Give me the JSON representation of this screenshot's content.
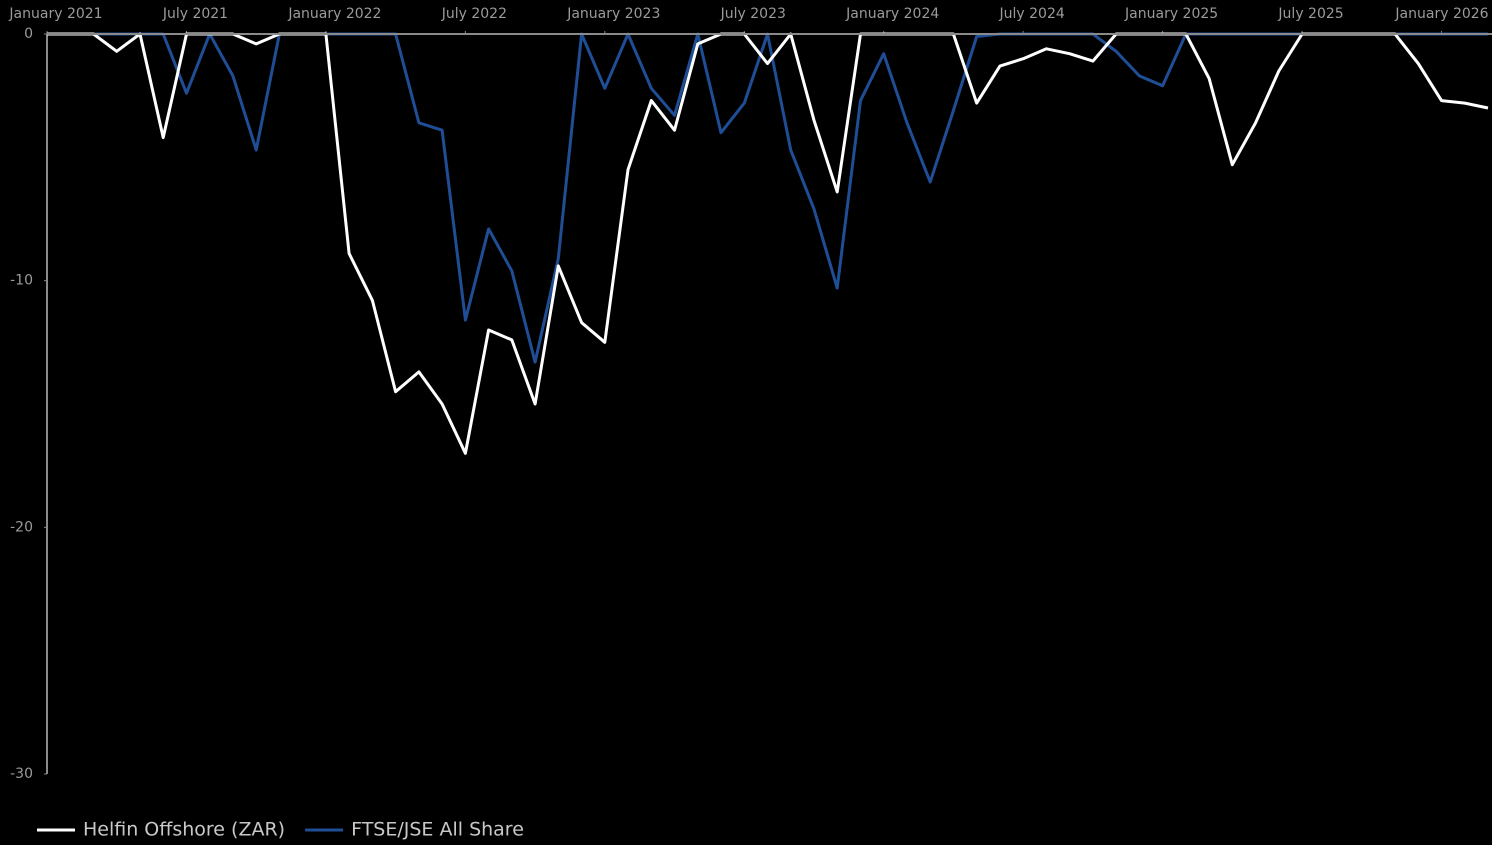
{
  "chart_data": {
    "type": "line",
    "x": [
      "2021-01",
      "2021-02",
      "2021-03",
      "2021-04",
      "2021-05",
      "2021-06",
      "2021-07",
      "2021-08",
      "2021-09",
      "2021-10",
      "2021-11",
      "2021-12",
      "2022-01",
      "2022-02",
      "2022-03",
      "2022-04",
      "2022-05",
      "2022-06",
      "2022-07",
      "2022-08",
      "2022-09",
      "2022-10",
      "2022-11",
      "2022-12",
      "2023-01",
      "2023-02",
      "2023-03",
      "2023-04",
      "2023-05",
      "2023-06",
      "2023-07",
      "2023-08",
      "2023-09",
      "2023-10",
      "2023-11",
      "2023-12",
      "2024-01",
      "2024-02",
      "2024-03",
      "2024-04",
      "2024-05",
      "2024-06",
      "2024-07",
      "2024-08",
      "2024-09",
      "2024-10",
      "2024-11",
      "2024-12",
      "2025-01",
      "2025-02",
      "2025-03",
      "2025-04",
      "2025-05",
      "2025-06",
      "2025-07",
      "2025-08",
      "2025-09",
      "2025-10",
      "2025-11",
      "2025-12",
      "2026-01",
      "2026-02",
      "2026-03"
    ],
    "xticks": [
      {
        "value": "2021-01",
        "label": "January 2021"
      },
      {
        "value": "2021-07",
        "label": "July 2021"
      },
      {
        "value": "2022-01",
        "label": "January 2022"
      },
      {
        "value": "2022-07",
        "label": "July 2022"
      },
      {
        "value": "2023-01",
        "label": "January 2023"
      },
      {
        "value": "2023-07",
        "label": "July 2023"
      },
      {
        "value": "2024-01",
        "label": "January 2024"
      },
      {
        "value": "2024-07",
        "label": "July 2024"
      },
      {
        "value": "2025-01",
        "label": "January 2025"
      },
      {
        "value": "2025-07",
        "label": "July 2025"
      },
      {
        "value": "2026-01",
        "label": "January 2026"
      }
    ],
    "series": [
      {
        "name": "Helfin Offshore (ZAR)",
        "color": "#ffffff",
        "values": [
          0,
          0,
          0,
          -0.7,
          0,
          -4.2,
          0,
          0,
          0,
          -0.4,
          0,
          0,
          0,
          -8.9,
          -10.8,
          -14.5,
          -13.7,
          -15.0,
          -17.0,
          -12.0,
          -12.4,
          -15.0,
          -9.4,
          -11.7,
          -12.5,
          -5.5,
          -2.7,
          -3.9,
          -0.4,
          0,
          0,
          -1.2,
          0,
          -3.5,
          -6.4,
          0,
          0,
          0,
          0,
          0,
          -2.8,
          -1.3,
          -1.0,
          -0.6,
          -0.8,
          -1.1,
          0,
          0,
          0,
          0,
          -1.8,
          -5.3,
          -3.6,
          -1.5,
          0,
          0,
          0,
          0,
          0,
          -1.2,
          -2.7,
          -2.8,
          -3.0
        ]
      },
      {
        "name": "FTSE/JSE All Share",
        "color": "#1f4e96",
        "values": [
          0,
          0,
          0,
          0,
          0,
          0,
          -2.4,
          0,
          -1.7,
          -4.7,
          0,
          0,
          0,
          0,
          0,
          0,
          -3.6,
          -3.9,
          -11.6,
          -7.9,
          -9.6,
          -13.3,
          -9.1,
          0,
          -2.2,
          0,
          -2.2,
          -3.3,
          0,
          -4.0,
          -2.8,
          0,
          -4.7,
          -7.1,
          -10.3,
          -2.7,
          -0.8,
          -3.6,
          -6.0,
          -3.1,
          -0.1,
          0,
          0,
          0,
          0,
          0,
          -0.7,
          -1.7,
          -2.1,
          0,
          0,
          0,
          0,
          0,
          0,
          0,
          0,
          0,
          0,
          0,
          0,
          0,
          0
        ]
      }
    ],
    "ylim": [
      -30,
      0
    ],
    "yticks": [
      0,
      -10,
      -20,
      -30
    ],
    "grid": false,
    "legend": "bottom-left"
  }
}
